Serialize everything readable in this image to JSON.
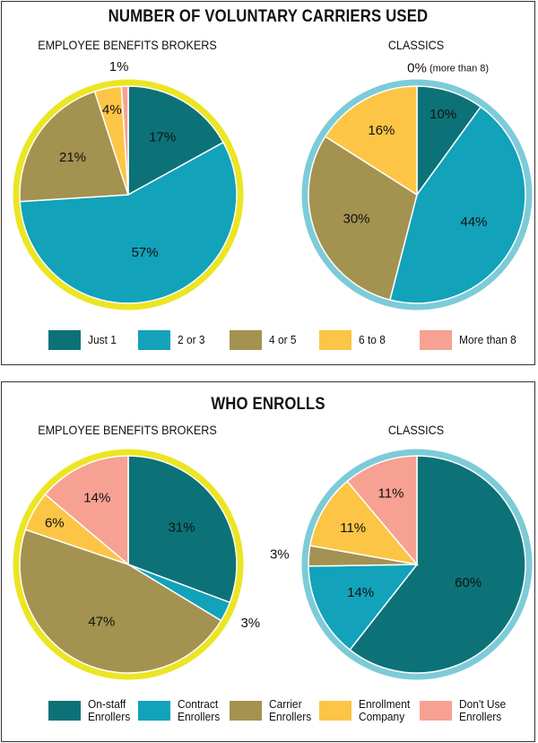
{
  "colors": {
    "just1": "#0c7277",
    "two_three": "#12a2ba",
    "four_five": "#a39250",
    "six_eight": "#fcc545",
    "more_eight": "#f6a192",
    "ring_brokers": "#ece524",
    "ring_classics": "#7dcbd8"
  },
  "top": {
    "title": "NUMBER OF VOLUNTARY CARRIERS USED",
    "legend": [
      "Just 1",
      "2 or 3",
      "4 or 5",
      "6 to 8",
      "More than 8"
    ]
  },
  "bottom": {
    "title": "WHO ENROLLS",
    "legend": [
      [
        "On-staff",
        "Enrollers"
      ],
      [
        "Contract",
        "Enrollers"
      ],
      [
        "Carrier",
        "Enrollers"
      ],
      [
        "Enrollment",
        "Company"
      ],
      [
        "Don't Use",
        "Enrollers"
      ]
    ]
  },
  "chart_data": [
    {
      "type": "pie",
      "title": "EMPLOYEE BENEFITS BROKERS",
      "categories": [
        "Just 1",
        "2 or 3",
        "4 or 5",
        "6 to 8",
        "More than 8"
      ],
      "values": [
        17,
        57,
        21,
        4,
        1
      ],
      "labels": [
        "17%",
        "57%",
        "21%",
        "4%",
        "1%"
      ]
    },
    {
      "type": "pie",
      "title": "CLASSICS",
      "categories": [
        "Just 1",
        "2 or 3",
        "4 or 5",
        "6 to 8",
        "More than 8"
      ],
      "values": [
        10,
        44,
        30,
        16,
        0
      ],
      "labels": [
        "10%",
        "44%",
        "30%",
        "16%",
        "0%"
      ],
      "annotation": "(more than 8)"
    },
    {
      "type": "pie",
      "title": "EMPLOYEE BENEFITS BROKERS",
      "categories": [
        "On-staff Enrollers",
        "Contract Enrollers",
        "Carrier Enrollers",
        "Enrollment Company",
        "Don't Use Enrollers"
      ],
      "values": [
        31,
        3,
        47,
        6,
        14
      ],
      "labels": [
        "31%",
        "3%",
        "47%",
        "6%",
        "14%"
      ]
    },
    {
      "type": "pie",
      "title": "CLASSICS",
      "categories": [
        "On-staff Enrollers",
        "Contract Enrollers",
        "Carrier Enrollers",
        "Enrollment Company",
        "Don't Use Enrollers"
      ],
      "values": [
        60,
        14,
        3,
        11,
        11
      ],
      "labels": [
        "60%",
        "14%",
        "3%",
        "11%",
        "11%"
      ]
    }
  ]
}
